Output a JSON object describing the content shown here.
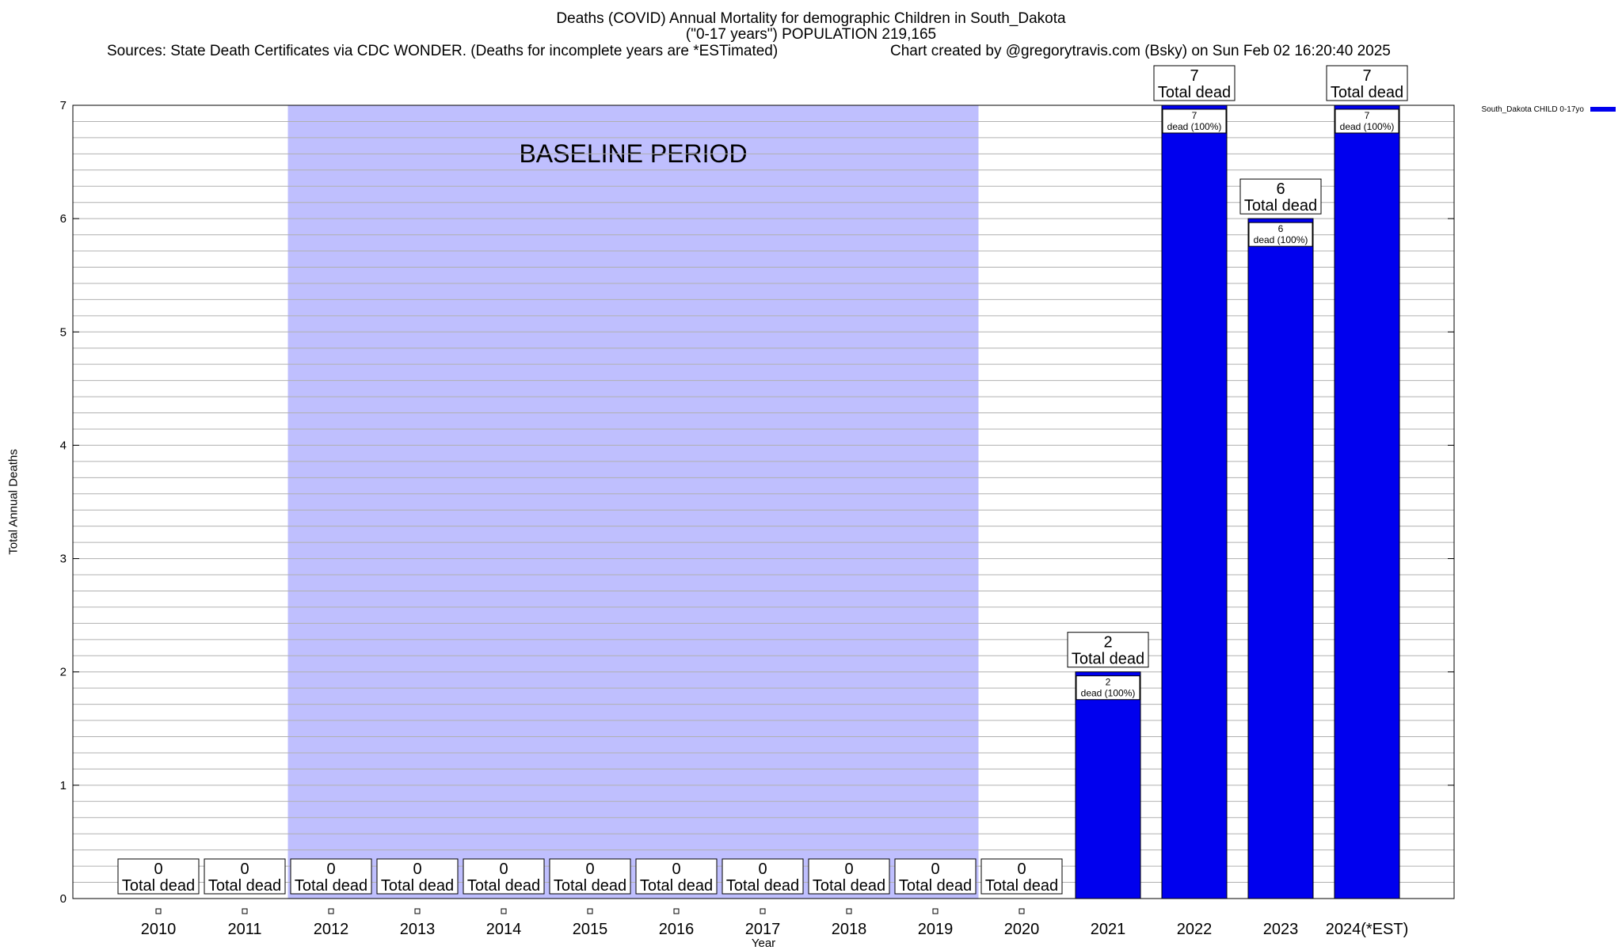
{
  "header": {
    "title_line1": "Deaths (COVID) Annual Mortality for demographic Children in South_Dakota",
    "title_line2": "(\"0-17 years\") POPULATION 219,165",
    "sources": "Sources: State Death Certificates via CDC WONDER. (Deaths for incomplete years are *ESTimated)",
    "credit": "Chart created by @gregorytravis.com (Bsky) on Sun Feb 02 16:20:40 2025"
  },
  "chart_data": {
    "type": "bar",
    "title": "Deaths (COVID) Annual Mortality for demographic Children in South_Dakota",
    "subtitle": "(\"0-17 years\") POPULATION 219,165",
    "xlabel": "Year",
    "ylabel": "Total Annual Deaths",
    "ylim": [
      0,
      7
    ],
    "yticks": [
      0,
      1,
      2,
      3,
      4,
      5,
      6,
      7
    ],
    "grid": true,
    "legend_position": "top-right",
    "categories": [
      "2010",
      "2011",
      "2012",
      "2013",
      "2014",
      "2015",
      "2016",
      "2017",
      "2018",
      "2019",
      "2020",
      "2021",
      "2022",
      "2023",
      "2024(*EST)"
    ],
    "series": [
      {
        "name": "South_Dakota CHILD 0-17yo",
        "color": "#0000ee",
        "values": [
          0,
          0,
          0,
          0,
          0,
          0,
          0,
          0,
          0,
          0,
          0,
          2,
          7,
          6,
          7
        ]
      }
    ],
    "total_label_text": "Total dead",
    "inner_label_text": "dead (100%)",
    "baseline_period": {
      "label": "BASELINE PERIOD",
      "from_category": "2012",
      "to_category": "2019",
      "color": "#bfbffe"
    }
  }
}
